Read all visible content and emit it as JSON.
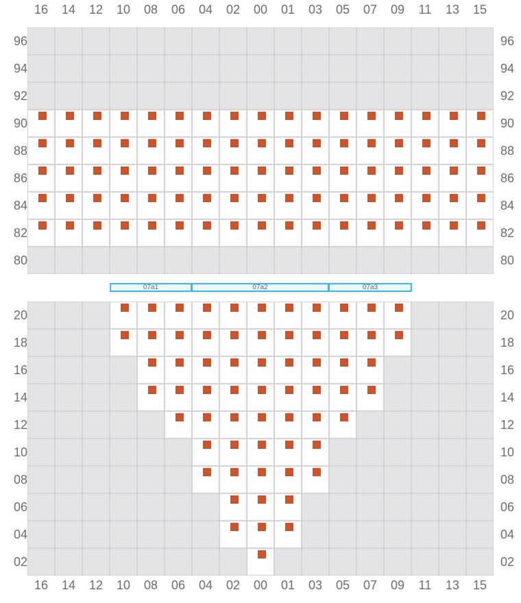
{
  "colors": {
    "seat": "#cc5229",
    "unavailable": "#e4e4e7",
    "open": "#ffffff",
    "grid_line": "#d4d4d8",
    "section_border": "#3bb6ee",
    "section_fill": "#eef6ff"
  },
  "columns": [
    "16",
    "14",
    "12",
    "10",
    "08",
    "06",
    "04",
    "02",
    "00",
    "01",
    "03",
    "05",
    "07",
    "09",
    "11",
    "13",
    "15"
  ],
  "upper_block": {
    "rows": [
      {
        "label": "96",
        "seats_from": null,
        "seats_to": null
      },
      {
        "label": "94",
        "seats_from": null,
        "seats_to": null
      },
      {
        "label": "92",
        "seats_from": null,
        "seats_to": null
      },
      {
        "label": "90",
        "seats_from": "16",
        "seats_to": "15"
      },
      {
        "label": "88",
        "seats_from": "16",
        "seats_to": "15"
      },
      {
        "label": "86",
        "seats_from": "16",
        "seats_to": "15"
      },
      {
        "label": "84",
        "seats_from": "16",
        "seats_to": "15"
      },
      {
        "label": "82",
        "seats_from": "16",
        "seats_to": "15"
      },
      {
        "label": "80",
        "seats_from": null,
        "seats_to": null
      }
    ]
  },
  "sections": [
    {
      "label": "07a1",
      "from": "10",
      "to": "06"
    },
    {
      "label": "07a2",
      "from": "04",
      "to": "03"
    },
    {
      "label": "07a3",
      "from": "05",
      "to": "09"
    }
  ],
  "lower_block": {
    "rows": [
      {
        "label": "20",
        "seats_from": "10",
        "seats_to": "09"
      },
      {
        "label": "18",
        "seats_from": "10",
        "seats_to": "09"
      },
      {
        "label": "16",
        "seats_from": "08",
        "seats_to": "07"
      },
      {
        "label": "14",
        "seats_from": "08",
        "seats_to": "07"
      },
      {
        "label": "12",
        "seats_from": "06",
        "seats_to": "05"
      },
      {
        "label": "10",
        "seats_from": "04",
        "seats_to": "03"
      },
      {
        "label": "08",
        "seats_from": "04",
        "seats_to": "03"
      },
      {
        "label": "06",
        "seats_from": "02",
        "seats_to": "01"
      },
      {
        "label": "04",
        "seats_from": "02",
        "seats_to": "01"
      },
      {
        "label": "02",
        "seats_from": "00",
        "seats_to": "00"
      }
    ]
  }
}
